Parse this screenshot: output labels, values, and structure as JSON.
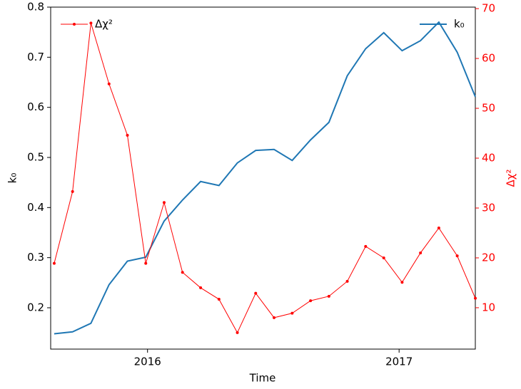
{
  "chart_data": {
    "type": "line",
    "xlabel": "Time",
    "ylabel": "k₀",
    "y2label": "Δχ²",
    "x": [
      2015.629,
      2015.702,
      2015.775,
      2015.847,
      2015.92,
      2015.993,
      2016.066,
      2016.139,
      2016.211,
      2016.284,
      2016.357,
      2016.43,
      2016.503,
      2016.575,
      2016.648,
      2016.721,
      2016.794,
      2016.867,
      2016.939,
      2017.012,
      2017.085,
      2017.158,
      2017.231,
      2017.303
    ],
    "xlim": [
      2015.615,
      2017.303
    ],
    "xticks": [
      2016,
      2017
    ],
    "ylim": [
      0.1175,
      0.8
    ],
    "yticks": [
      0.2,
      0.3,
      0.4,
      0.5,
      0.6,
      0.7,
      0.8
    ],
    "y2lim": [
      1.7,
      70.3
    ],
    "y2ticks": [
      10,
      20,
      30,
      40,
      50,
      60,
      70
    ],
    "y2color": "#ff0000",
    "series": [
      {
        "name": "k₀",
        "color": "#1f77b4",
        "axis": "y",
        "markers": false,
        "legend": "upper right",
        "values": [
          0.148,
          0.152,
          0.169,
          0.246,
          0.293,
          0.301,
          0.373,
          0.415,
          0.452,
          0.444,
          0.489,
          0.514,
          0.516,
          0.494,
          0.535,
          0.57,
          0.663,
          0.717,
          0.749,
          0.713,
          0.733,
          0.77,
          0.71,
          0.621
        ]
      },
      {
        "name": "Δχ²",
        "color": "#ff0000",
        "axis": "y2",
        "markers": true,
        "legend": "upper left",
        "values": [
          18.9,
          33.3,
          67.1,
          54.9,
          44.6,
          18.9,
          31.1,
          17.1,
          14.0,
          11.7,
          5.0,
          12.9,
          8.0,
          8.9,
          11.4,
          12.3,
          15.3,
          22.3,
          20.0,
          15.1,
          21.0,
          26.0,
          20.4,
          11.9
        ]
      }
    ]
  }
}
